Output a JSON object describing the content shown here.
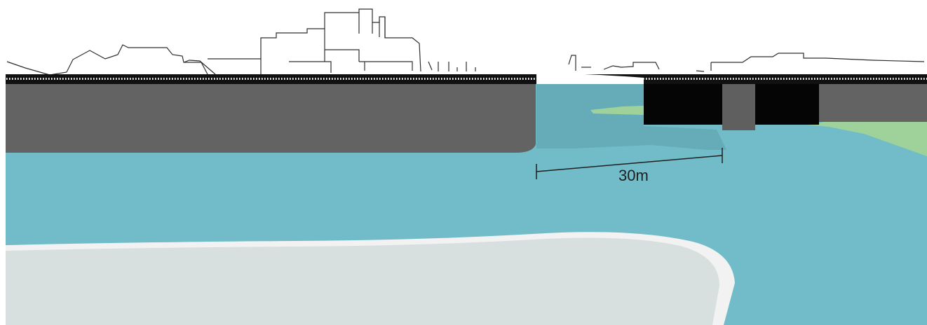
{
  "diagram": {
    "scale_bar": {
      "label": "30m",
      "length_m": 30
    },
    "colors": {
      "water": "#71bcc8",
      "water_shadow": "#66acb8",
      "riverbank_wall": "#636363",
      "bridge_pier": "#050505",
      "bridge_deck": "#111111",
      "grass": "#9fd29a",
      "island_fill": "#d8dfdf",
      "island_rim": "#f2f2f2",
      "skyline_outline": "#2d2d2d"
    }
  }
}
